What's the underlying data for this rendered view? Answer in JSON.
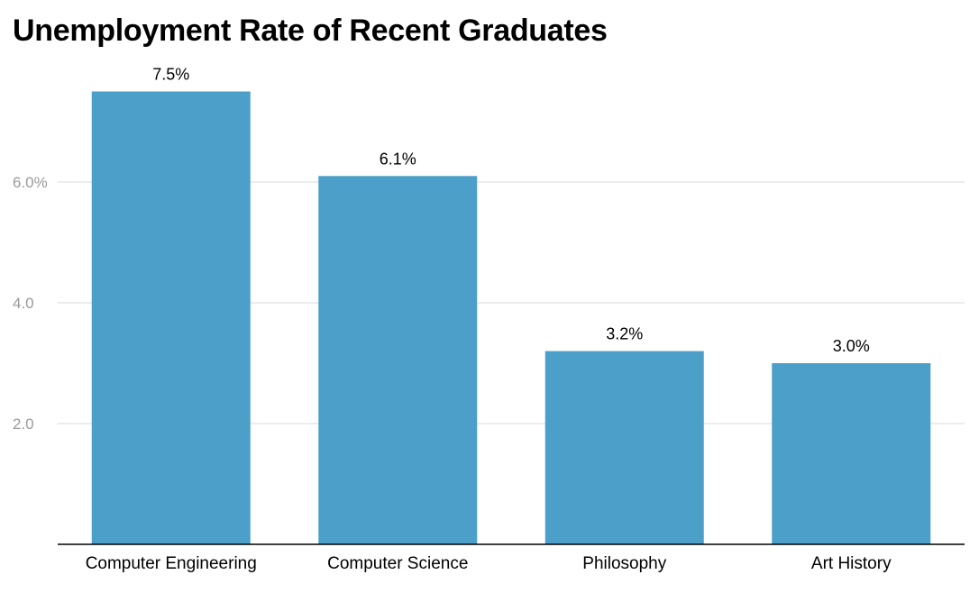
{
  "chart_data": {
    "type": "bar",
    "title": "Unemployment Rate of Recent Graduates",
    "xlabel": "",
    "ylabel": "",
    "categories": [
      "Computer Engineering",
      "Computer Science",
      "Philosophy",
      "Art History"
    ],
    "values": [
      7.5,
      6.1,
      3.2,
      3.0
    ],
    "data_labels": [
      "7.5%",
      "6.1%",
      "3.2%",
      "3.0%"
    ],
    "ylim": [
      0,
      8.0
    ],
    "yticks": [
      {
        "value": 2.0,
        "label": "2.0"
      },
      {
        "value": 4.0,
        "label": "4.0"
      },
      {
        "value": 6.0,
        "label": "6.0%"
      }
    ],
    "grid": true,
    "legend": "none",
    "bar_color": "#4b9fc9",
    "grid_color": "#d9d9d9",
    "tick_label_color": "#9a9a9a"
  }
}
